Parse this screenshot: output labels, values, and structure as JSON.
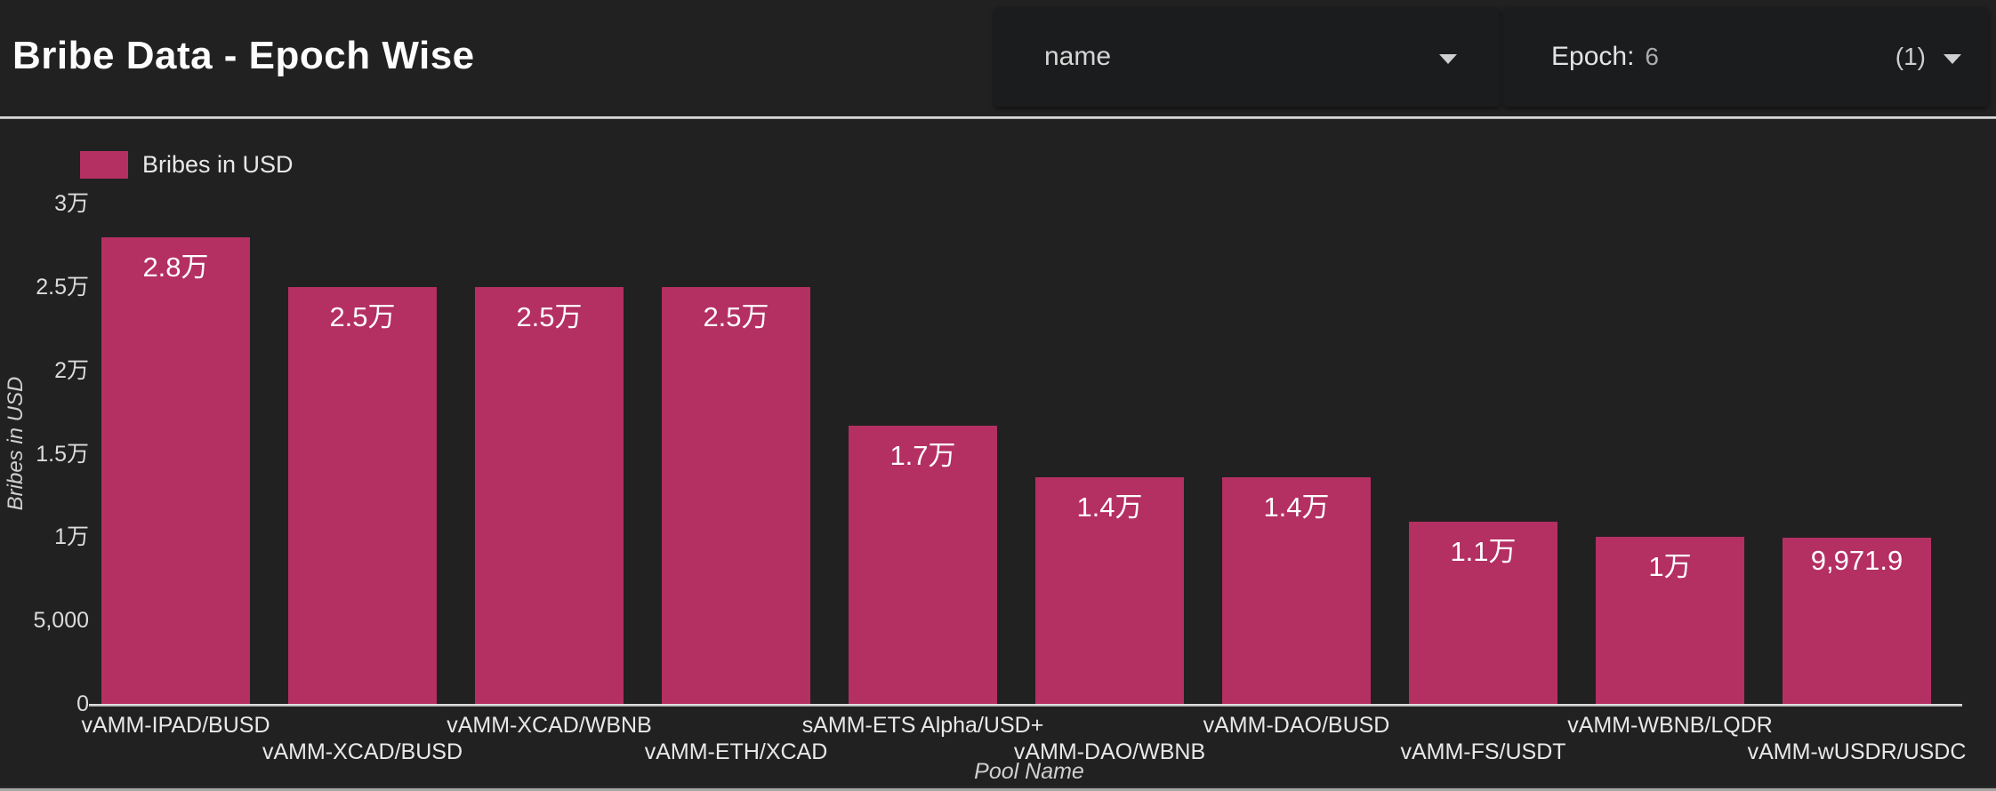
{
  "header": {
    "title": "Bribe Data - Epoch Wise",
    "name_filter": {
      "value": "name"
    },
    "epoch_filter": {
      "label": "Epoch:",
      "value": "6",
      "selection_count": "(1)"
    }
  },
  "legend": {
    "label": "Bribes in USD"
  },
  "chart_data": {
    "type": "bar",
    "title": "Bribe Data - Epoch Wise",
    "xlabel": "Pool Name",
    "ylabel": "Bribes in USD",
    "ylim": [
      0,
      30000
    ],
    "grid": false,
    "legend_position": "top-left",
    "legend_entries": [
      "Bribes in USD"
    ],
    "bar_color": "#b42f62",
    "categories": [
      "vAMM-IPAD/BUSD",
      "vAMM-XCAD/BUSD",
      "vAMM-XCAD/WBNB",
      "vAMM-ETH/XCAD",
      "sAMM-ETS Alpha/USD+",
      "vAMM-DAO/WBNB",
      "vAMM-DAO/BUSD",
      "vAMM-FS/USDT",
      "vAMM-WBNB/LQDR",
      "vAMM-wUSDR/USDC"
    ],
    "values": [
      28000,
      25000,
      25000,
      25000,
      16700,
      13600,
      13600,
      10900,
      10000,
      9971.9
    ],
    "bar_labels": [
      "2.8万",
      "2.5万",
      "2.5万",
      "2.5万",
      "1.7万",
      "1.4万",
      "1.4万",
      "1.1万",
      "1万",
      "9,971.9"
    ],
    "yticks": [
      {
        "value": 0,
        "label": "0"
      },
      {
        "value": 5000,
        "label": "5,000"
      },
      {
        "value": 10000,
        "label": "1万"
      },
      {
        "value": 15000,
        "label": "1.5万"
      },
      {
        "value": 20000,
        "label": "2万"
      },
      {
        "value": 25000,
        "label": "2.5万"
      },
      {
        "value": 30000,
        "label": "3万"
      }
    ]
  },
  "colors": {
    "background": "#212121",
    "panel_control": "#1b1c1d",
    "bar": "#b42f62",
    "axis_line": "#d9d9d9",
    "text_primary": "#ffffff",
    "text_secondary": "#d8d8d8"
  }
}
